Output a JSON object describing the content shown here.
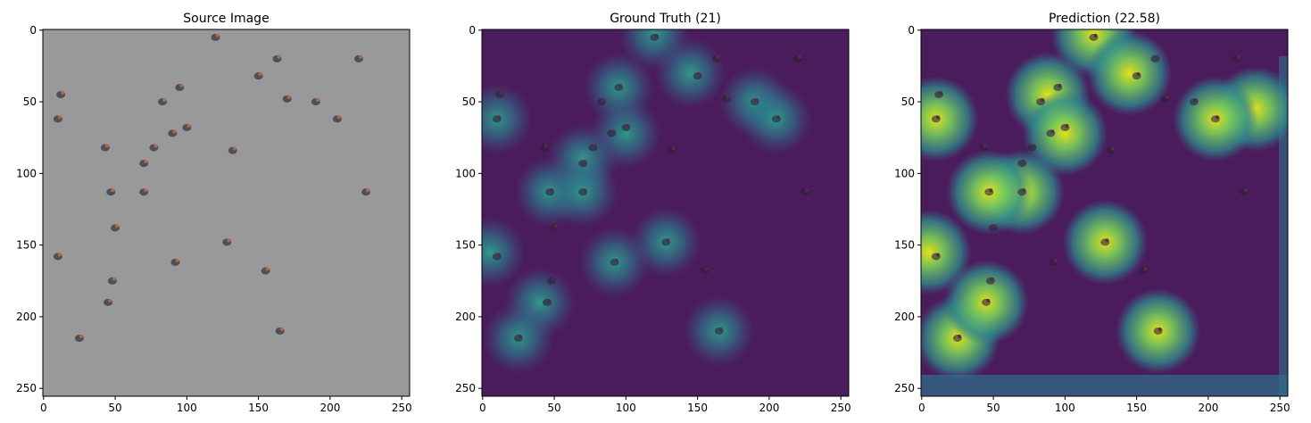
{
  "chart_data": [
    {
      "type": "image",
      "title": "Source Image",
      "xlim": [
        -0.5,
        255.5
      ],
      "ylim": [
        255.5,
        -0.5
      ],
      "xticks": [
        0,
        50,
        100,
        150,
        200,
        250
      ],
      "yticks": [
        0,
        50,
        100,
        150,
        200,
        250
      ],
      "background": "#999999"
    },
    {
      "type": "image",
      "title": "Ground Truth (21)",
      "xlim": [
        -0.5,
        255.5
      ],
      "ylim": [
        255.5,
        -0.5
      ],
      "xticks": [
        0,
        50,
        100,
        150,
        200,
        250
      ],
      "yticks": [
        0,
        50,
        100,
        150,
        200,
        250
      ],
      "background": "#4a1c5c"
    },
    {
      "type": "image",
      "title": "Prediction (22.58)",
      "xlim": [
        -0.5,
        255.5
      ],
      "ylim": [
        255.5,
        -0.5
      ],
      "xticks": [
        0,
        50,
        100,
        150,
        200,
        250
      ],
      "yticks": [
        0,
        50,
        100,
        150,
        200,
        250
      ],
      "background": "#4a1c5c"
    }
  ]
}
